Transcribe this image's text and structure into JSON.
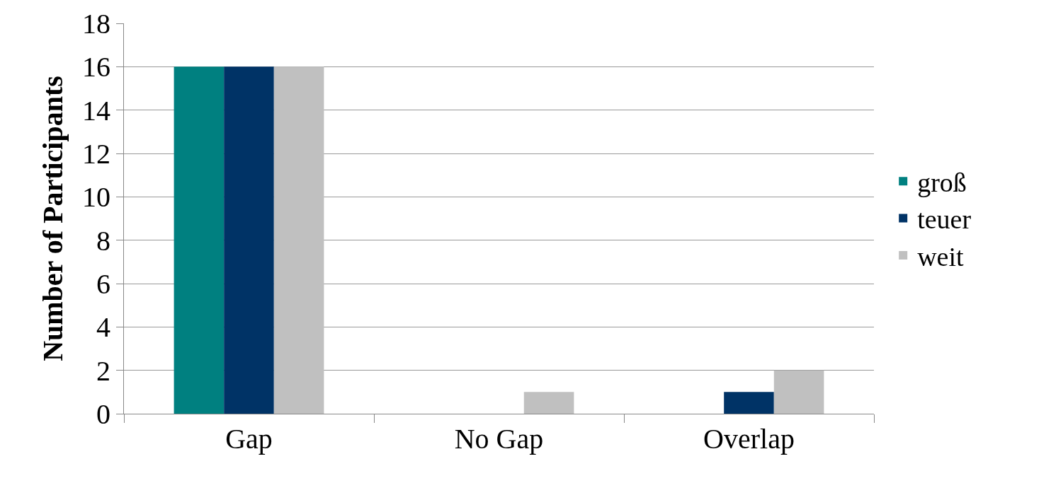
{
  "chart_data": {
    "type": "bar",
    "ylabel": "Number of Participants",
    "categories": [
      "Gap",
      "No Gap",
      "Overlap"
    ],
    "series": [
      {
        "name": "groß",
        "color": "#008080",
        "values": [
          16,
          0,
          0
        ]
      },
      {
        "name": "teuer",
        "color": "#003366",
        "values": [
          16,
          0,
          1
        ]
      },
      {
        "name": "weit",
        "color": "#c0c0c0",
        "values": [
          16,
          1,
          2
        ]
      }
    ],
    "ylim": [
      0,
      18
    ],
    "yticks": [
      0,
      2,
      4,
      6,
      8,
      10,
      12,
      14,
      16,
      18
    ],
    "grid": "y",
    "legend": "right"
  }
}
